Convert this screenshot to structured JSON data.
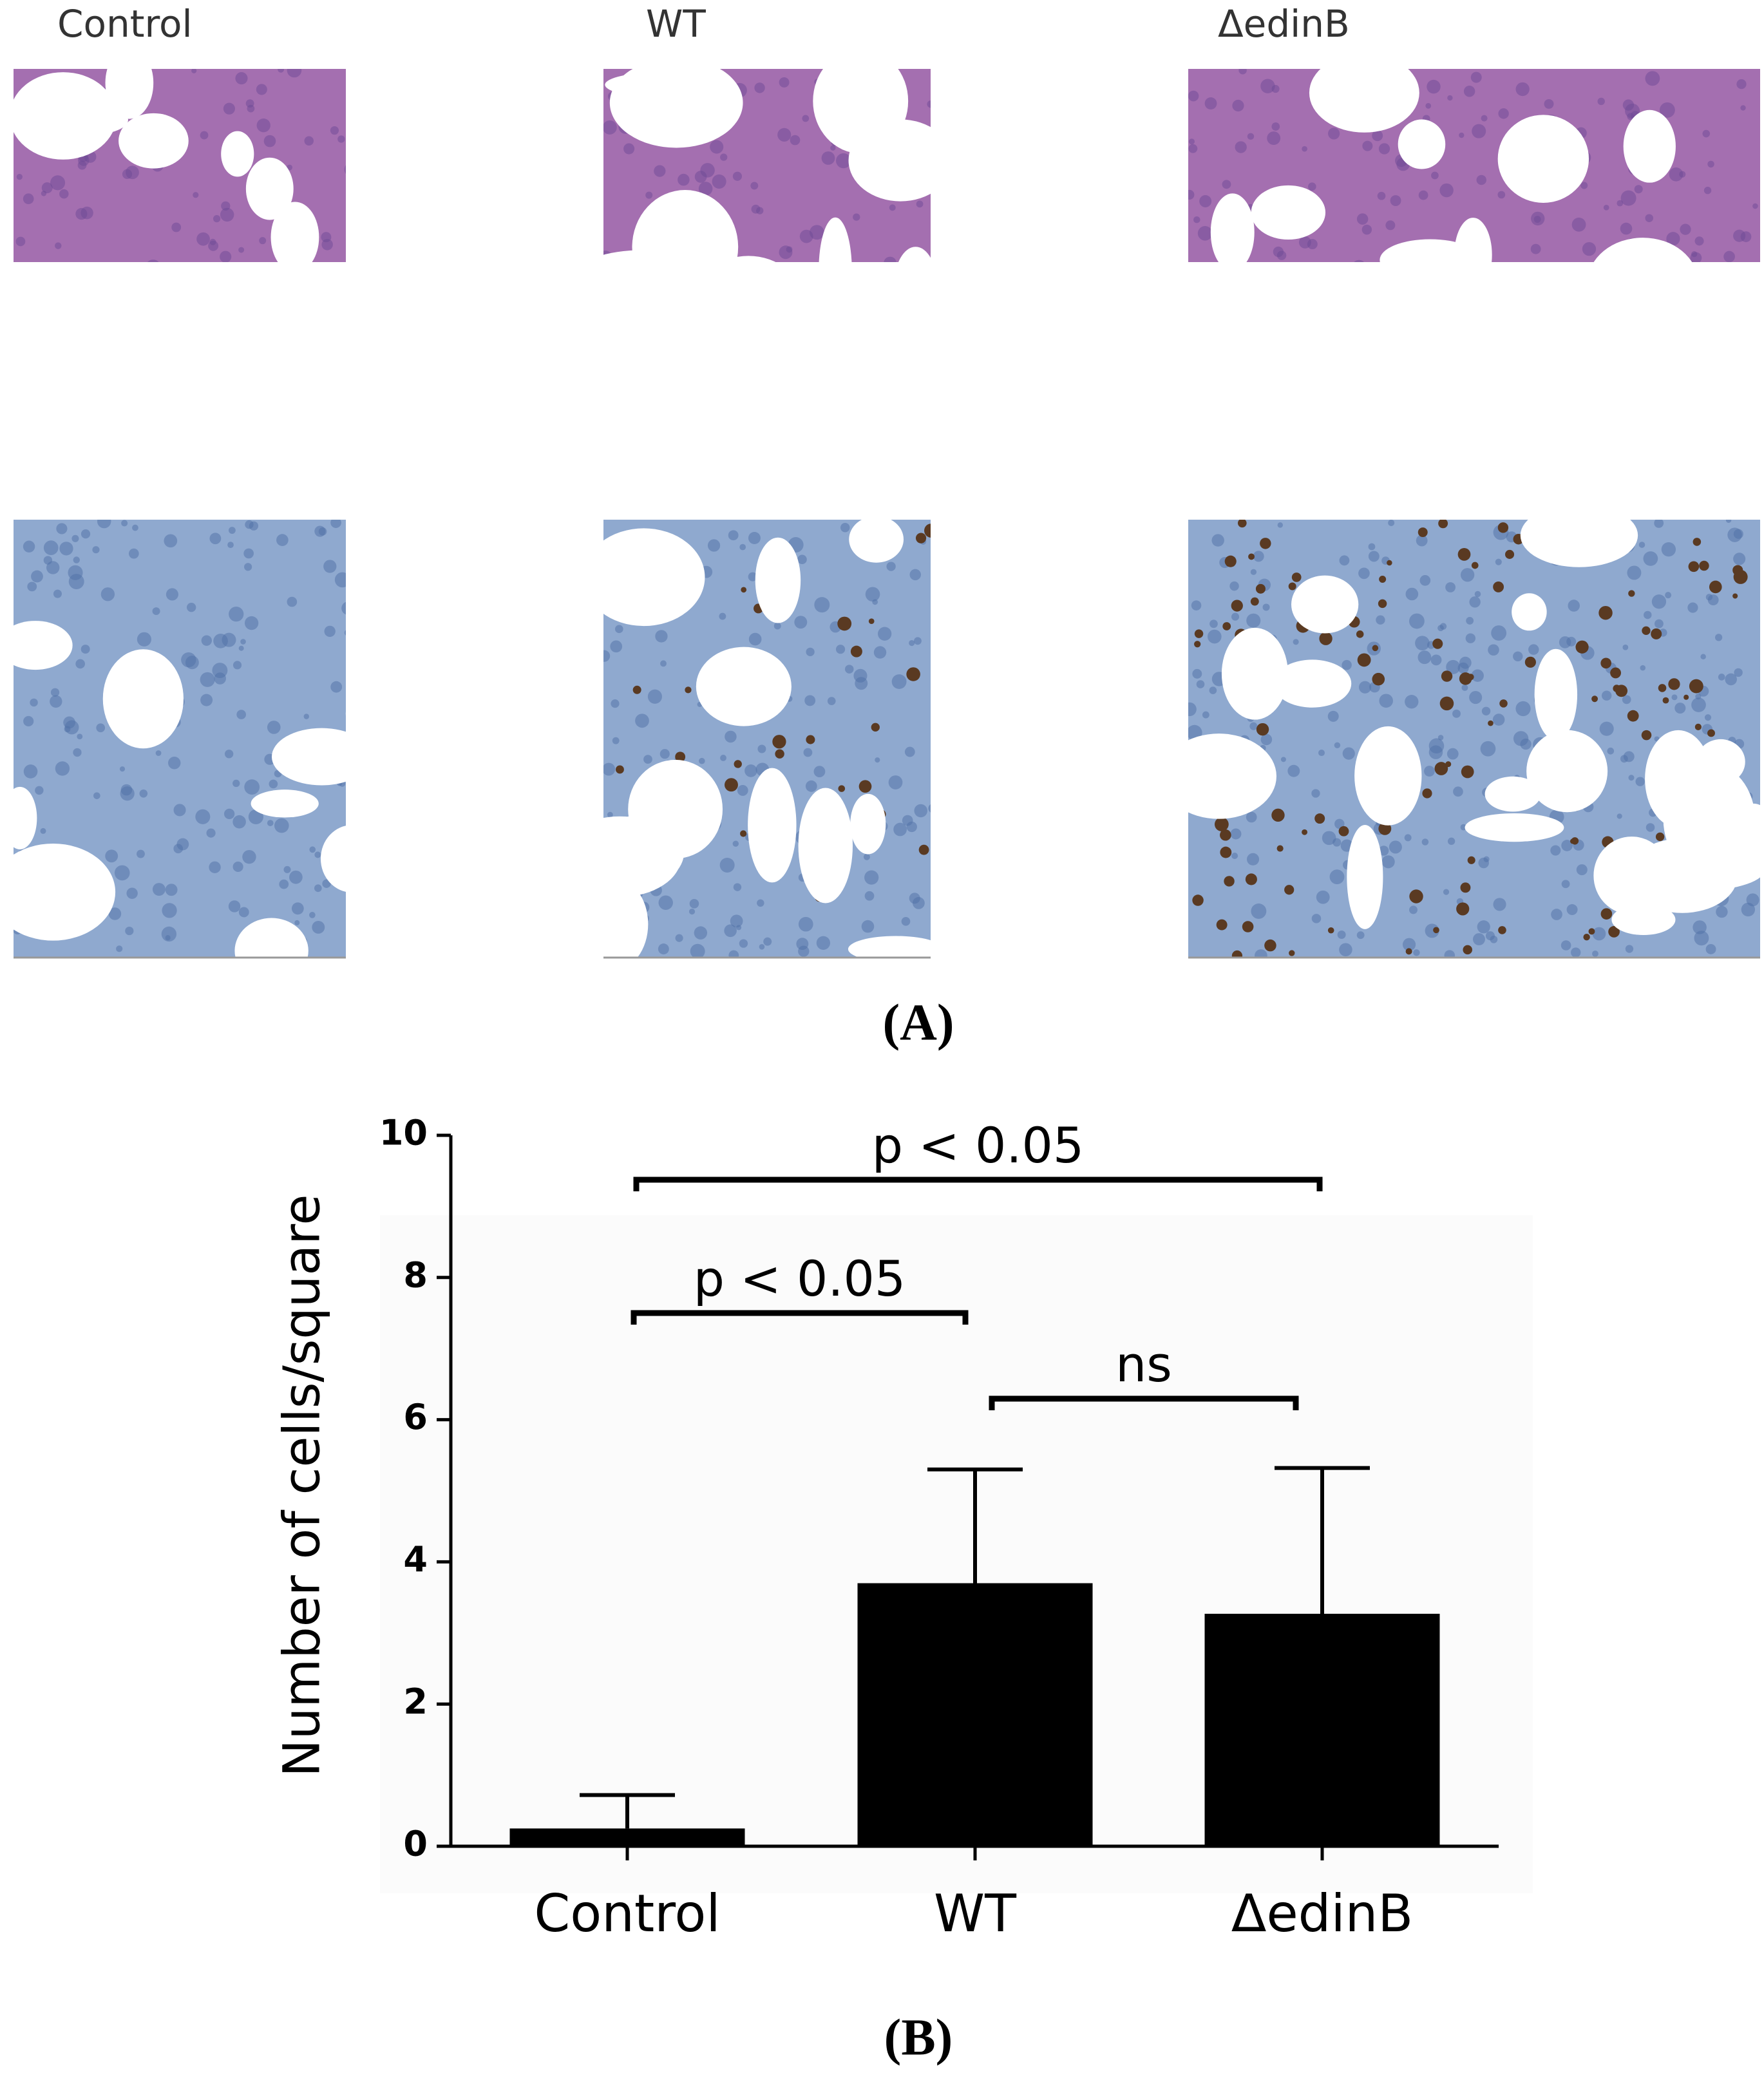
{
  "panel_a": {
    "column_labels": [
      "Control",
      "WT",
      "ΔedinB"
    ],
    "caption": "(A)"
  },
  "chart_data": {
    "type": "bar",
    "categories": [
      "Control",
      "WT",
      "ΔedinB"
    ],
    "values": [
      0.25,
      3.7,
      3.27
    ],
    "errors": [
      0.47,
      1.6,
      2.05
    ],
    "color": "#000000",
    "y_label": "Number of cells/square",
    "ylim": [
      0,
      10
    ],
    "yticks": [
      0,
      2,
      4,
      6,
      8,
      10
    ],
    "annotations": [
      "p < 0.05",
      "p < 0.05",
      "ns"
    ]
  },
  "panel_b_caption": "(B)"
}
